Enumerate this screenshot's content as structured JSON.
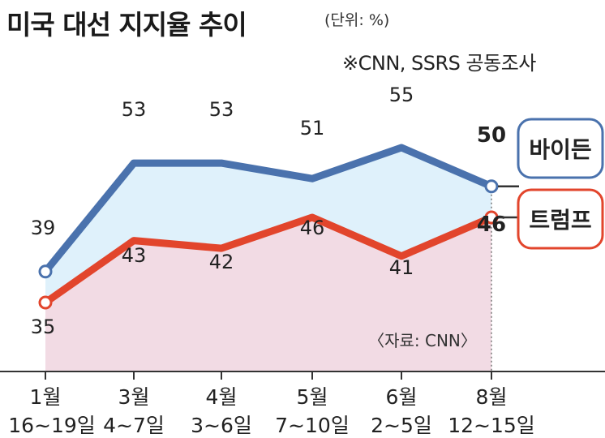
{
  "header": {
    "title": "미국 대선 지지율 추이",
    "unit": "(단위: %)",
    "note": "※CNN, SSRS 공동조사"
  },
  "colors": {
    "biden": "#4a72ad",
    "trump": "#e2452c",
    "biden_fill": "#dff1fb",
    "trump_fill": "#f2dbe4",
    "axis": "#333333"
  },
  "chart_data": {
    "type": "line",
    "categories": [
      [
        "1월",
        "16~19일"
      ],
      [
        "3월",
        "4~7일"
      ],
      [
        "4월",
        "3~6일"
      ],
      [
        "5월",
        "7~10일"
      ],
      [
        "6월",
        "2~5일"
      ],
      [
        "8월",
        "12~15일"
      ]
    ],
    "series": [
      {
        "name": "바이든",
        "values": [
          39,
          53,
          53,
          51,
          55,
          50
        ]
      },
      {
        "name": "트럼프",
        "values": [
          35,
          43,
          42,
          46,
          41,
          46
        ]
      }
    ],
    "source": "〈자료: CNN〉",
    "title": "미국 대선 지지율 추이",
    "ylabel": "",
    "xlabel": ""
  }
}
